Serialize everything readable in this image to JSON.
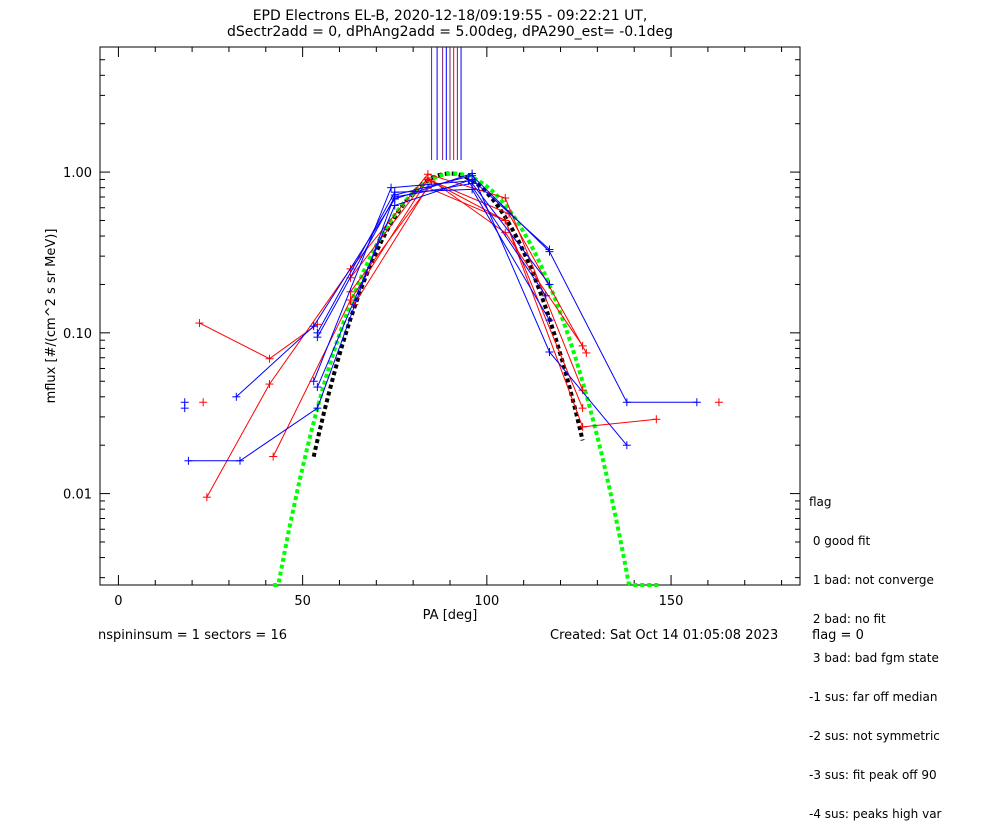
{
  "header": {
    "title_line1": "EPD Electrons EL-B, 2020-12-18/09:19:55 - 09:22:21 UT,",
    "title_line2": "dSectr2add = 0, dPhAng2add = 5.00deg, dPA290_est=  -0.1deg"
  },
  "footer": {
    "left": "nspininsum =  1  sectors = 16",
    "created": "Created: Sat Oct 14 01:05:08 2023",
    "flag": "flag = 0"
  },
  "legend": {
    "title": "flag",
    "items": [
      " 0 good fit",
      " 1 bad: not converge",
      " 2 bad: no fit",
      " 3 bad: bad fgm state",
      "-1 sus: far off median",
      "-2 sus: not symmetric",
      "-3 sus: fit peak off 90",
      "-4 sus: peaks high var"
    ]
  },
  "chart_data": {
    "type": "line",
    "xlabel": "PA [deg]",
    "ylabel": "mflux [#/(cm^2 s sr MeV)]",
    "xlim": [
      -5,
      185
    ],
    "ylim": [
      0.0027,
      6.0
    ],
    "yscale": "log",
    "x_ticks": [
      0,
      50,
      100,
      150
    ],
    "y_ticks": [
      0.01,
      0.1,
      1.0
    ],
    "y_tick_labels": [
      "0.01",
      "0.10",
      "1.00"
    ],
    "colors": {
      "red": "#ff0000",
      "blue": "#0000ff",
      "black": "#000000",
      "green": "#00ff00",
      "purple": "#7a1f6e"
    },
    "series": [
      {
        "color": "red",
        "x": [
          22,
          41,
          54
        ],
        "y": [
          0.115,
          0.069,
          0.113
        ]
      },
      {
        "color": "red",
        "x": [
          24,
          41,
          63,
          84,
          105,
          126
        ],
        "y": [
          0.0095,
          0.048,
          0.25,
          0.97,
          0.69,
          0.044
        ]
      },
      {
        "color": "red",
        "x": [
          42,
          63,
          84,
          105,
          126,
          146
        ],
        "y": [
          0.017,
          0.16,
          0.9,
          0.5,
          0.026,
          0.029
        ]
      },
      {
        "color": "red",
        "x": [
          63,
          84,
          105,
          126
        ],
        "y": [
          0.22,
          0.92,
          0.42,
          0.083
        ]
      },
      {
        "color": "red",
        "x": [
          63,
          84,
          105,
          126
        ],
        "y": [
          0.18,
          0.8,
          0.5,
          0.034
        ]
      },
      {
        "color": "red",
        "x": [
          64,
          85,
          106,
          127
        ],
        "y": [
          0.15,
          0.88,
          0.55,
          0.075
        ]
      },
      {
        "color": "blue",
        "x": [
          19,
          33,
          54,
          75,
          96,
          117,
          138,
          157
        ],
        "y": [
          0.016,
          0.016,
          0.034,
          0.72,
          0.95,
          0.32,
          0.037,
          0.037
        ]
      },
      {
        "color": "blue",
        "x": [
          32,
          53,
          75,
          96,
          117,
          138
        ],
        "y": [
          0.04,
          0.11,
          0.68,
          0.98,
          0.076,
          0.02
        ]
      },
      {
        "color": "blue",
        "x": [
          54,
          75,
          96,
          117
        ],
        "y": [
          0.046,
          0.62,
          0.9,
          0.33
        ]
      },
      {
        "color": "blue",
        "x": [
          54,
          75,
          96,
          117
        ],
        "y": [
          0.094,
          0.7,
          0.85,
          0.2
        ]
      },
      {
        "color": "blue",
        "x": [
          54,
          75,
          96,
          117
        ],
        "y": [
          0.1,
          0.75,
          0.78,
          0.12
        ]
      },
      {
        "color": "blue",
        "x": [
          53,
          74,
          95,
          116
        ],
        "y": [
          0.05,
          0.8,
          0.88,
          0.17
        ]
      }
    ],
    "isolated_points": [
      {
        "color": "blue",
        "x": 18,
        "y": 0.037
      },
      {
        "color": "blue",
        "x": 18,
        "y": 0.034
      },
      {
        "color": "red",
        "x": 23,
        "y": 0.037
      },
      {
        "color": "red",
        "x": 163,
        "y": 0.037
      }
    ],
    "fits": [
      {
        "color": "black",
        "style": "dashed",
        "x_range": [
          53,
          126
        ],
        "center": 90,
        "amplitude": 0.98,
        "exponent": 8.2
      },
      {
        "color": "green",
        "style": "dashed",
        "x_range": [
          42,
          147
        ],
        "center": 91,
        "amplitude": 0.98,
        "exponent": 6.8
      }
    ],
    "peak_markers": [
      {
        "color": "purple",
        "x": 85
      },
      {
        "color": "blue",
        "x": 86.5
      },
      {
        "color": "purple",
        "x": 88
      },
      {
        "color": "blue",
        "x": 89
      },
      {
        "color": "purple",
        "x": 90
      },
      {
        "color": "red",
        "x": 91
      },
      {
        "color": "purple",
        "x": 92
      },
      {
        "color": "blue",
        "x": 93
      }
    ]
  }
}
